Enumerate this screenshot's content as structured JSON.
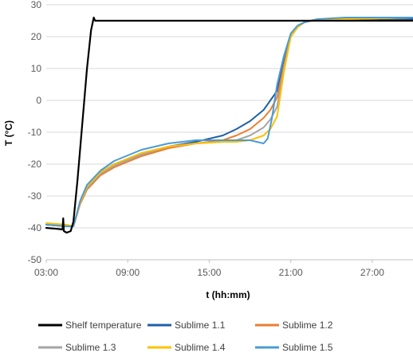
{
  "chart_data": {
    "type": "line",
    "title": "",
    "xlabel": "t (hh:mm)",
    "ylabel": "T (°C)",
    "x_unit": "hours",
    "xlim": [
      3,
      30
    ],
    "ylim": [
      -50,
      30
    ],
    "x_ticks": [
      3,
      9,
      15,
      21,
      27
    ],
    "x_tick_labels": [
      "03:00",
      "09:00",
      "15:00",
      "21:00",
      "27:00"
    ],
    "y_ticks": [
      -50,
      -40,
      -30,
      -20,
      -10,
      0,
      10,
      20,
      30
    ],
    "y_tick_labels": [
      "-50",
      "-40",
      "-30",
      "-20",
      "-10",
      "0",
      "10",
      "20",
      "30"
    ],
    "grid": "horizontal",
    "legend_position": "bottom",
    "series": [
      {
        "name": "Shelf temperature",
        "color": "#000000",
        "x": [
          3.0,
          3.8,
          4.2,
          4.25,
          4.3,
          4.5,
          4.8,
          5.0,
          5.3,
          5.5,
          6.0,
          6.3,
          6.5,
          6.6,
          7.0,
          10.0,
          15.0,
          20.0,
          22.0,
          25.0,
          30.0
        ],
        "y": [
          -40.0,
          -40.3,
          -40.5,
          -37.0,
          -41.0,
          -41.5,
          -41.0,
          -38.0,
          -25.0,
          -15.0,
          10.0,
          22.0,
          26.0,
          25.0,
          25.0,
          25.0,
          25.0,
          25.0,
          25.0,
          25.0,
          25.0
        ]
      },
      {
        "name": "Sublime 1.1",
        "color": "#1f5fa8",
        "x": [
          3.0,
          4.5,
          5.0,
          5.5,
          6.0,
          7.0,
          8.0,
          10.0,
          12.0,
          14.0,
          16.0,
          17.0,
          18.0,
          19.0,
          19.5,
          20.0,
          20.5,
          21.0,
          21.5,
          22.0,
          23.0,
          25.0,
          30.0
        ],
        "y": [
          -39.0,
          -39.5,
          -39.5,
          -32.0,
          -27.0,
          -22.5,
          -20.0,
          -17.0,
          -14.5,
          -13.0,
          -11.0,
          -9.0,
          -6.5,
          -3.0,
          0.0,
          3.0,
          12.0,
          20.0,
          23.0,
          24.5,
          25.5,
          25.5,
          25.5
        ]
      },
      {
        "name": "Sublime 1.2",
        "color": "#ed7d31",
        "x": [
          3.0,
          4.5,
          5.0,
          5.5,
          6.0,
          7.0,
          8.0,
          10.0,
          12.0,
          14.0,
          16.0,
          17.0,
          18.0,
          19.0,
          19.5,
          20.0,
          20.5,
          21.0,
          21.5,
          22.0,
          23.0,
          25.0,
          30.0
        ],
        "y": [
          -39.0,
          -39.5,
          -39.5,
          -32.5,
          -28.0,
          -23.5,
          -21.0,
          -17.5,
          -15.0,
          -13.5,
          -12.5,
          -11.0,
          -9.0,
          -5.5,
          -3.0,
          1.0,
          11.0,
          20.0,
          23.0,
          24.5,
          25.5,
          25.5,
          26.0
        ]
      },
      {
        "name": "Sublime 1.3",
        "color": "#a5a5a5",
        "x": [
          3.0,
          4.5,
          5.0,
          5.5,
          6.0,
          7.0,
          8.0,
          10.0,
          12.0,
          14.0,
          16.0,
          17.0,
          18.0,
          19.0,
          19.5,
          20.0,
          20.5,
          21.0,
          21.5,
          22.0,
          23.0,
          25.0,
          30.0
        ],
        "y": [
          -39.0,
          -39.5,
          -39.5,
          -32.0,
          -27.5,
          -23.0,
          -20.5,
          -17.0,
          -14.5,
          -13.5,
          -13.0,
          -12.5,
          -11.0,
          -8.5,
          -6.0,
          -2.0,
          10.0,
          20.0,
          23.0,
          24.5,
          25.5,
          25.5,
          26.0
        ]
      },
      {
        "name": "Sublime 1.4",
        "color": "#ffc000",
        "x": [
          3.0,
          4.5,
          5.0,
          5.5,
          6.0,
          7.0,
          8.0,
          10.0,
          12.0,
          14.0,
          16.0,
          17.0,
          18.0,
          19.0,
          19.5,
          20.0,
          20.5,
          21.0,
          21.5,
          22.0,
          23.0,
          25.0,
          30.0
        ],
        "y": [
          -38.5,
          -39.0,
          -39.5,
          -32.0,
          -27.0,
          -22.5,
          -20.0,
          -16.5,
          -14.5,
          -13.5,
          -13.0,
          -13.0,
          -12.5,
          -11.0,
          -9.0,
          -5.0,
          9.0,
          20.0,
          23.0,
          24.5,
          25.5,
          25.5,
          26.0
        ]
      },
      {
        "name": "Sublime 1.5",
        "color": "#4a9bd6",
        "x": [
          3.0,
          4.5,
          5.0,
          5.5,
          6.0,
          7.0,
          8.0,
          10.0,
          12.0,
          14.0,
          16.0,
          17.0,
          18.0,
          18.5,
          19.0,
          19.3,
          19.6,
          20.0,
          20.5,
          21.0,
          21.5,
          22.0,
          23.0,
          25.0,
          30.0
        ],
        "y": [
          -39.0,
          -39.5,
          -39.5,
          -31.5,
          -26.5,
          -22.0,
          -19.0,
          -15.5,
          -13.5,
          -12.5,
          -12.5,
          -12.5,
          -12.5,
          -13.0,
          -13.5,
          -12.0,
          -6.0,
          5.0,
          14.0,
          21.0,
          23.5,
          24.5,
          25.5,
          26.0,
          26.0
        ]
      }
    ]
  }
}
